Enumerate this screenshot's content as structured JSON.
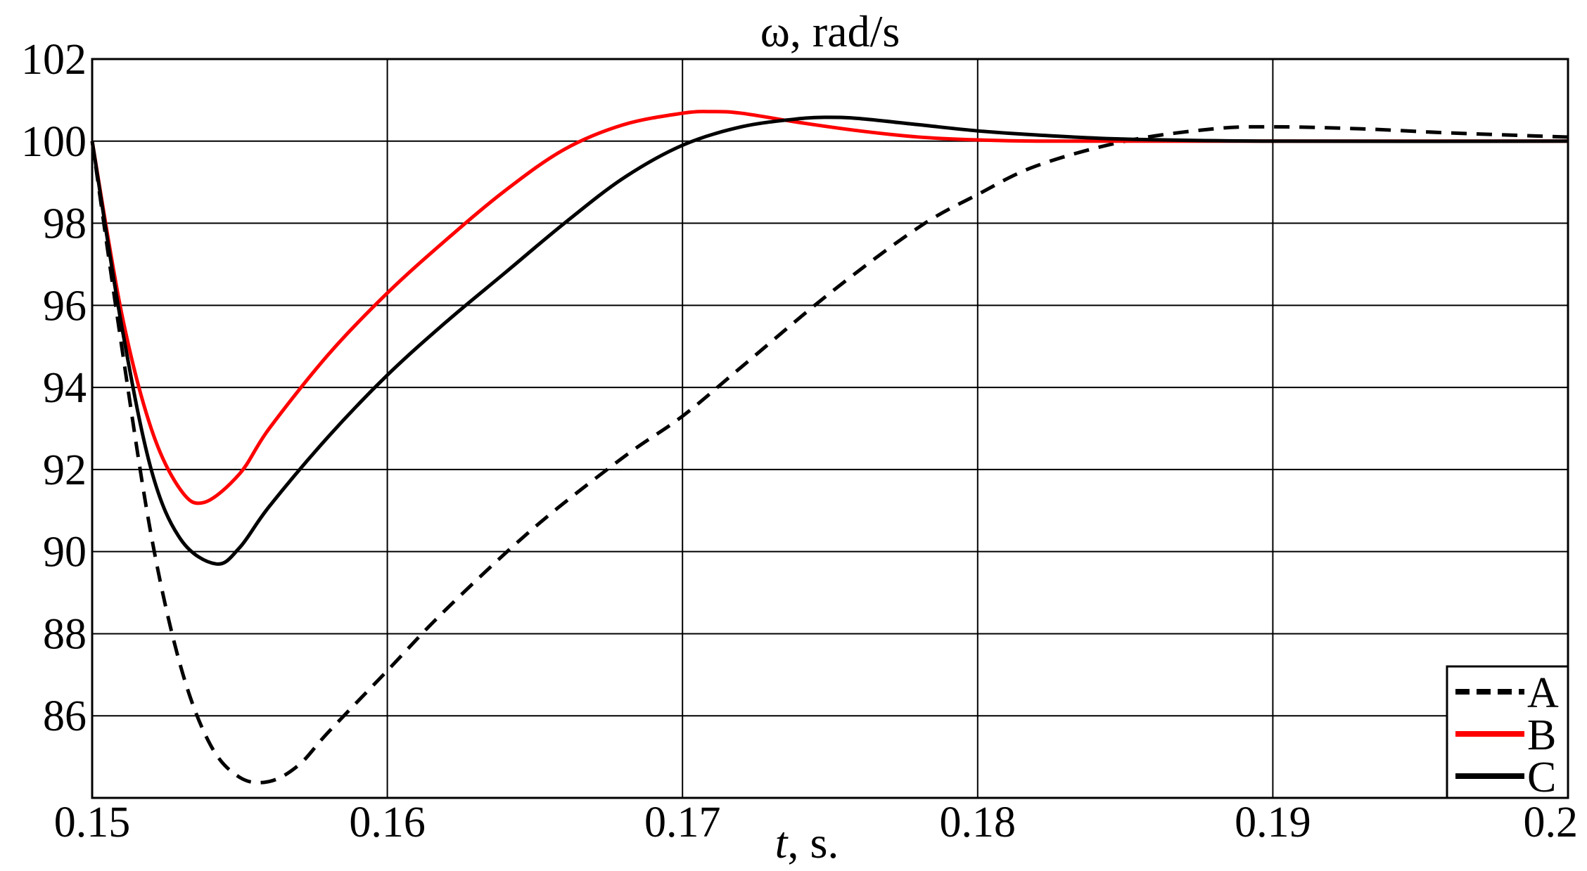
{
  "chart_data": {
    "type": "line",
    "title": "ω, rad/s",
    "xlabel_italic": "t",
    "xlabel_rest": ", s.",
    "xlim": [
      0.15,
      0.2
    ],
    "ylim": [
      84,
      102
    ],
    "x_ticks": [
      0.15,
      0.16,
      0.17,
      0.18,
      0.19,
      0.2
    ],
    "x_tick_labels": [
      "0.15",
      "0.16",
      "0.17",
      "0.18",
      "0.19",
      "0.2"
    ],
    "y_ticks": [
      86,
      88,
      90,
      92,
      94,
      96,
      98,
      100,
      102
    ],
    "y_tick_labels": [
      "86",
      "88",
      "90",
      "92",
      "94",
      "96",
      "98",
      "100",
      "102"
    ],
    "grid": true,
    "legend_position": "bottom-right",
    "series": [
      {
        "name": "A",
        "color": "#000000",
        "dash": "dashed",
        "x": [
          0.15,
          0.151,
          0.152,
          0.153,
          0.154,
          0.155,
          0.156,
          0.157,
          0.158,
          0.16,
          0.162,
          0.165,
          0.168,
          0.17,
          0.172,
          0.175,
          0.178,
          0.18,
          0.182,
          0.185,
          0.188,
          0.19,
          0.193,
          0.196,
          0.2
        ],
        "y": [
          100,
          95.0,
          90.4,
          87.2,
          85.3,
          84.5,
          84.4,
          84.8,
          85.6,
          87.1,
          88.6,
          90.6,
          92.3,
          93.3,
          94.5,
          96.3,
          97.9,
          98.7,
          99.4,
          100.0,
          100.3,
          100.35,
          100.3,
          100.2,
          100.1
        ]
      },
      {
        "name": "B",
        "color": "#ff0000",
        "dash": "solid",
        "x": [
          0.15,
          0.151,
          0.152,
          0.153,
          0.1538,
          0.155,
          0.156,
          0.158,
          0.16,
          0.162,
          0.164,
          0.166,
          0.168,
          0.17,
          0.171,
          0.172,
          0.174,
          0.176,
          0.178,
          0.18,
          0.182,
          0.185,
          0.19,
          0.2
        ],
        "y": [
          100,
          95.8,
          93.0,
          91.5,
          91.2,
          91.9,
          93.0,
          94.8,
          96.3,
          97.6,
          98.8,
          99.8,
          100.4,
          100.68,
          100.72,
          100.68,
          100.45,
          100.25,
          100.1,
          100.03,
          100.0,
          100.0,
          100.0,
          100.0
        ]
      },
      {
        "name": "C",
        "color": "#000000",
        "dash": "solid",
        "x": [
          0.15,
          0.151,
          0.152,
          0.153,
          0.1542,
          0.155,
          0.156,
          0.158,
          0.16,
          0.162,
          0.164,
          0.166,
          0.168,
          0.17,
          0.172,
          0.174,
          0.175,
          0.176,
          0.178,
          0.18,
          0.182,
          0.185,
          0.19,
          0.2
        ],
        "y": [
          100,
          95.5,
          92.0,
          90.3,
          89.7,
          90.1,
          91.1,
          92.8,
          94.3,
          95.6,
          96.8,
          98.0,
          99.1,
          99.9,
          100.35,
          100.55,
          100.58,
          100.55,
          100.4,
          100.25,
          100.15,
          100.05,
          100.0,
          100.0
        ]
      }
    ]
  }
}
